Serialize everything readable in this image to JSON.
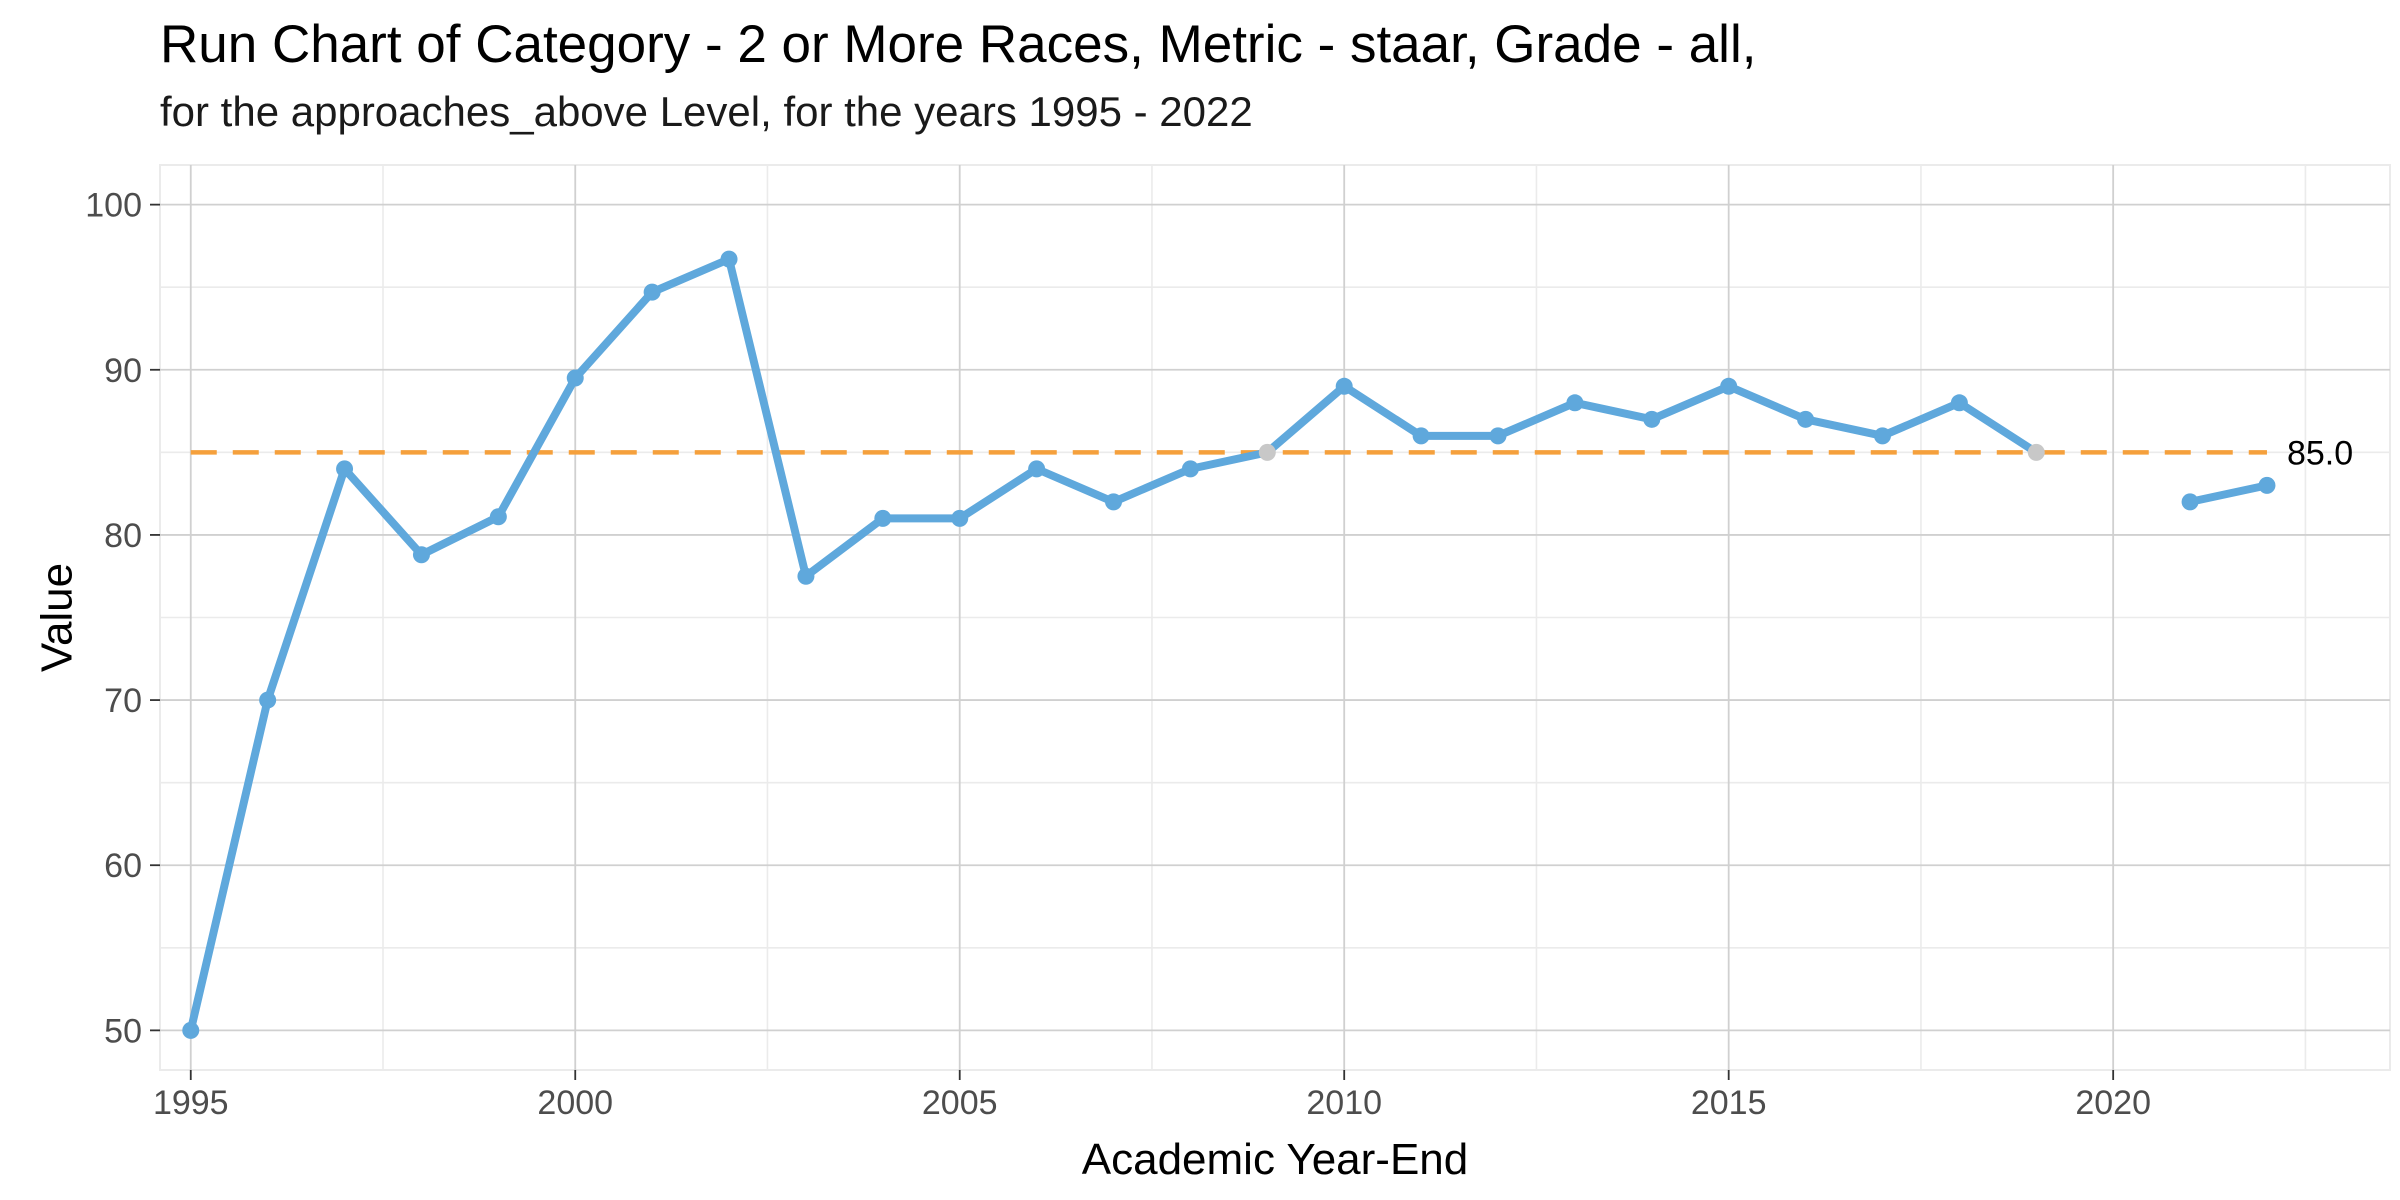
{
  "chart_data": {
    "type": "line",
    "title": "Run Chart of Category - 2 or More Races, Metric - staar, Grade - all,",
    "subtitle": "for the approaches_above Level, for the years 1995 - 2022",
    "xlabel": "Academic Year-End",
    "ylabel": "Value",
    "xlim": [
      1994.6,
      2023.6
    ],
    "ylim": [
      47.6,
      102.4
    ],
    "x_ticks": [
      1995,
      2000,
      2005,
      2010,
      2015,
      2020
    ],
    "y_ticks": [
      50,
      60,
      70,
      80,
      90,
      100
    ],
    "grid": true,
    "series": [
      {
        "x": [
          1995,
          1996,
          1997,
          1998,
          1999,
          2000,
          2001,
          2002,
          2003,
          2004,
          2005,
          2006,
          2007,
          2008,
          2009,
          2010,
          2011,
          2012,
          2013,
          2014,
          2015,
          2016,
          2017,
          2018,
          2019,
          2020,
          2021,
          2022
        ],
        "values": [
          50,
          70,
          84,
          78.8,
          81.1,
          89.5,
          94.7,
          96.7,
          77.5,
          81,
          81,
          84,
          82,
          84,
          85,
          89,
          86,
          86,
          88,
          87,
          89,
          87,
          86,
          88,
          85,
          null,
          82,
          83
        ],
        "highlighted_x": [
          2009,
          2019
        ]
      }
    ],
    "reference_line": {
      "value": 85.0,
      "label": "85.0",
      "x_range": [
        1995,
        2022
      ],
      "style": "dashed"
    },
    "colors": {
      "line": "#5fa8dc",
      "highlight_point": "#c8c8c8",
      "reference": "#f5a03c",
      "grid_major": "#d0d0d0",
      "grid_minor": "#ebebeb"
    }
  }
}
